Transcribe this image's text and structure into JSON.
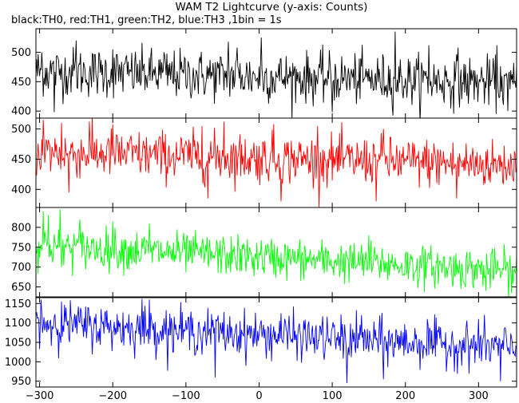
{
  "title": "WAM T2 Lightcurve (y-axis: Counts)",
  "subtitle": "black:TH0, red:TH1, green:TH2, blue:TH3 ,1bin = 1s",
  "chart_data": {
    "type": "line",
    "title": "WAM T2 Lightcurve (y-axis: Counts)",
    "subtitle": "black:TH0, red:TH1, green:TH2, blue:TH3 ,1bin = 1s",
    "xlabel": "",
    "ylabel": "Counts",
    "xlim": [
      -305,
      352
    ],
    "bin_seconds": 1,
    "x_ticks": [
      -300,
      -200,
      -100,
      0,
      100,
      200,
      300
    ],
    "panels": [
      {
        "name": "TH0",
        "color": "#000000",
        "ylim": [
          388,
          540
        ],
        "y_ticks": [
          400,
          450,
          500
        ],
        "mean_start": 468,
        "mean_end": 448,
        "noise_sd": 21,
        "spikes": [
          {
            "x": -297,
            "y": 500
          },
          {
            "x": -250,
            "y": 520
          },
          {
            "x": -200,
            "y": 505
          },
          {
            "x": -130,
            "y": 500
          },
          {
            "x": -42,
            "y": 518
          },
          {
            "x": -30,
            "y": 508
          },
          {
            "x": 3,
            "y": 525
          },
          {
            "x": 186,
            "y": 535
          },
          {
            "x": 232,
            "y": 512
          },
          {
            "x": 272,
            "y": 508
          },
          {
            "x": 325,
            "y": 512
          },
          {
            "x": -280,
            "y": 398
          },
          {
            "x": 100,
            "y": 398
          },
          {
            "x": 340,
            "y": 400
          }
        ]
      },
      {
        "name": "TH1",
        "color": "#ff0000",
        "ylim": [
          370,
          518
        ],
        "y_ticks": [
          400,
          450,
          500
        ],
        "mean_start": 462,
        "mean_end": 440,
        "noise_sd": 20,
        "spikes": [
          {
            "x": -295,
            "y": 515
          },
          {
            "x": -270,
            "y": 510
          },
          {
            "x": -232,
            "y": 512
          },
          {
            "x": -200,
            "y": 508
          },
          {
            "x": -78,
            "y": 505
          },
          {
            "x": -48,
            "y": 512
          },
          {
            "x": 20,
            "y": 508
          },
          {
            "x": 80,
            "y": 505
          },
          {
            "x": 170,
            "y": 500
          },
          {
            "x": -260,
            "y": 395
          },
          {
            "x": -70,
            "y": 385
          },
          {
            "x": 30,
            "y": 380
          },
          {
            "x": 160,
            "y": 380
          },
          {
            "x": 270,
            "y": 385
          }
        ]
      },
      {
        "name": "TH2",
        "color": "#00ff00",
        "ylim": [
          625,
          850
        ],
        "y_ticks": [
          650,
          700,
          750,
          800
        ],
        "mean_start": 755,
        "mean_end": 690,
        "noise_sd": 25,
        "spikes": [
          {
            "x": -295,
            "y": 840
          },
          {
            "x": -272,
            "y": 845
          },
          {
            "x": -288,
            "y": 830
          },
          {
            "x": -245,
            "y": 820
          },
          {
            "x": -200,
            "y": 815
          },
          {
            "x": -150,
            "y": 810
          },
          {
            "x": 150,
            "y": 780
          },
          {
            "x": -270,
            "y": 700
          },
          {
            "x": 310,
            "y": 640
          },
          {
            "x": 345,
            "y": 635
          }
        ]
      },
      {
        "name": "TH3",
        "color": "#0000ff",
        "ylim": [
          935,
          1165
        ],
        "y_ticks": [
          950,
          1000,
          1050,
          1100,
          1150
        ],
        "mean_start": 1100,
        "mean_end": 1035,
        "noise_sd": 28,
        "spikes": [
          {
            "x": -298,
            "y": 1160
          },
          {
            "x": -270,
            "y": 1155
          },
          {
            "x": -160,
            "y": 1162
          },
          {
            "x": -150,
            "y": 1160
          },
          {
            "x": 30,
            "y": 1125
          },
          {
            "x": 140,
            "y": 1120
          },
          {
            "x": 230,
            "y": 1110
          },
          {
            "x": 300,
            "y": 1110
          },
          {
            "x": -60,
            "y": 960
          },
          {
            "x": 170,
            "y": 955
          },
          {
            "x": 120,
            "y": 945
          },
          {
            "x": 330,
            "y": 950
          }
        ]
      }
    ],
    "grid": false,
    "legend": "none"
  }
}
